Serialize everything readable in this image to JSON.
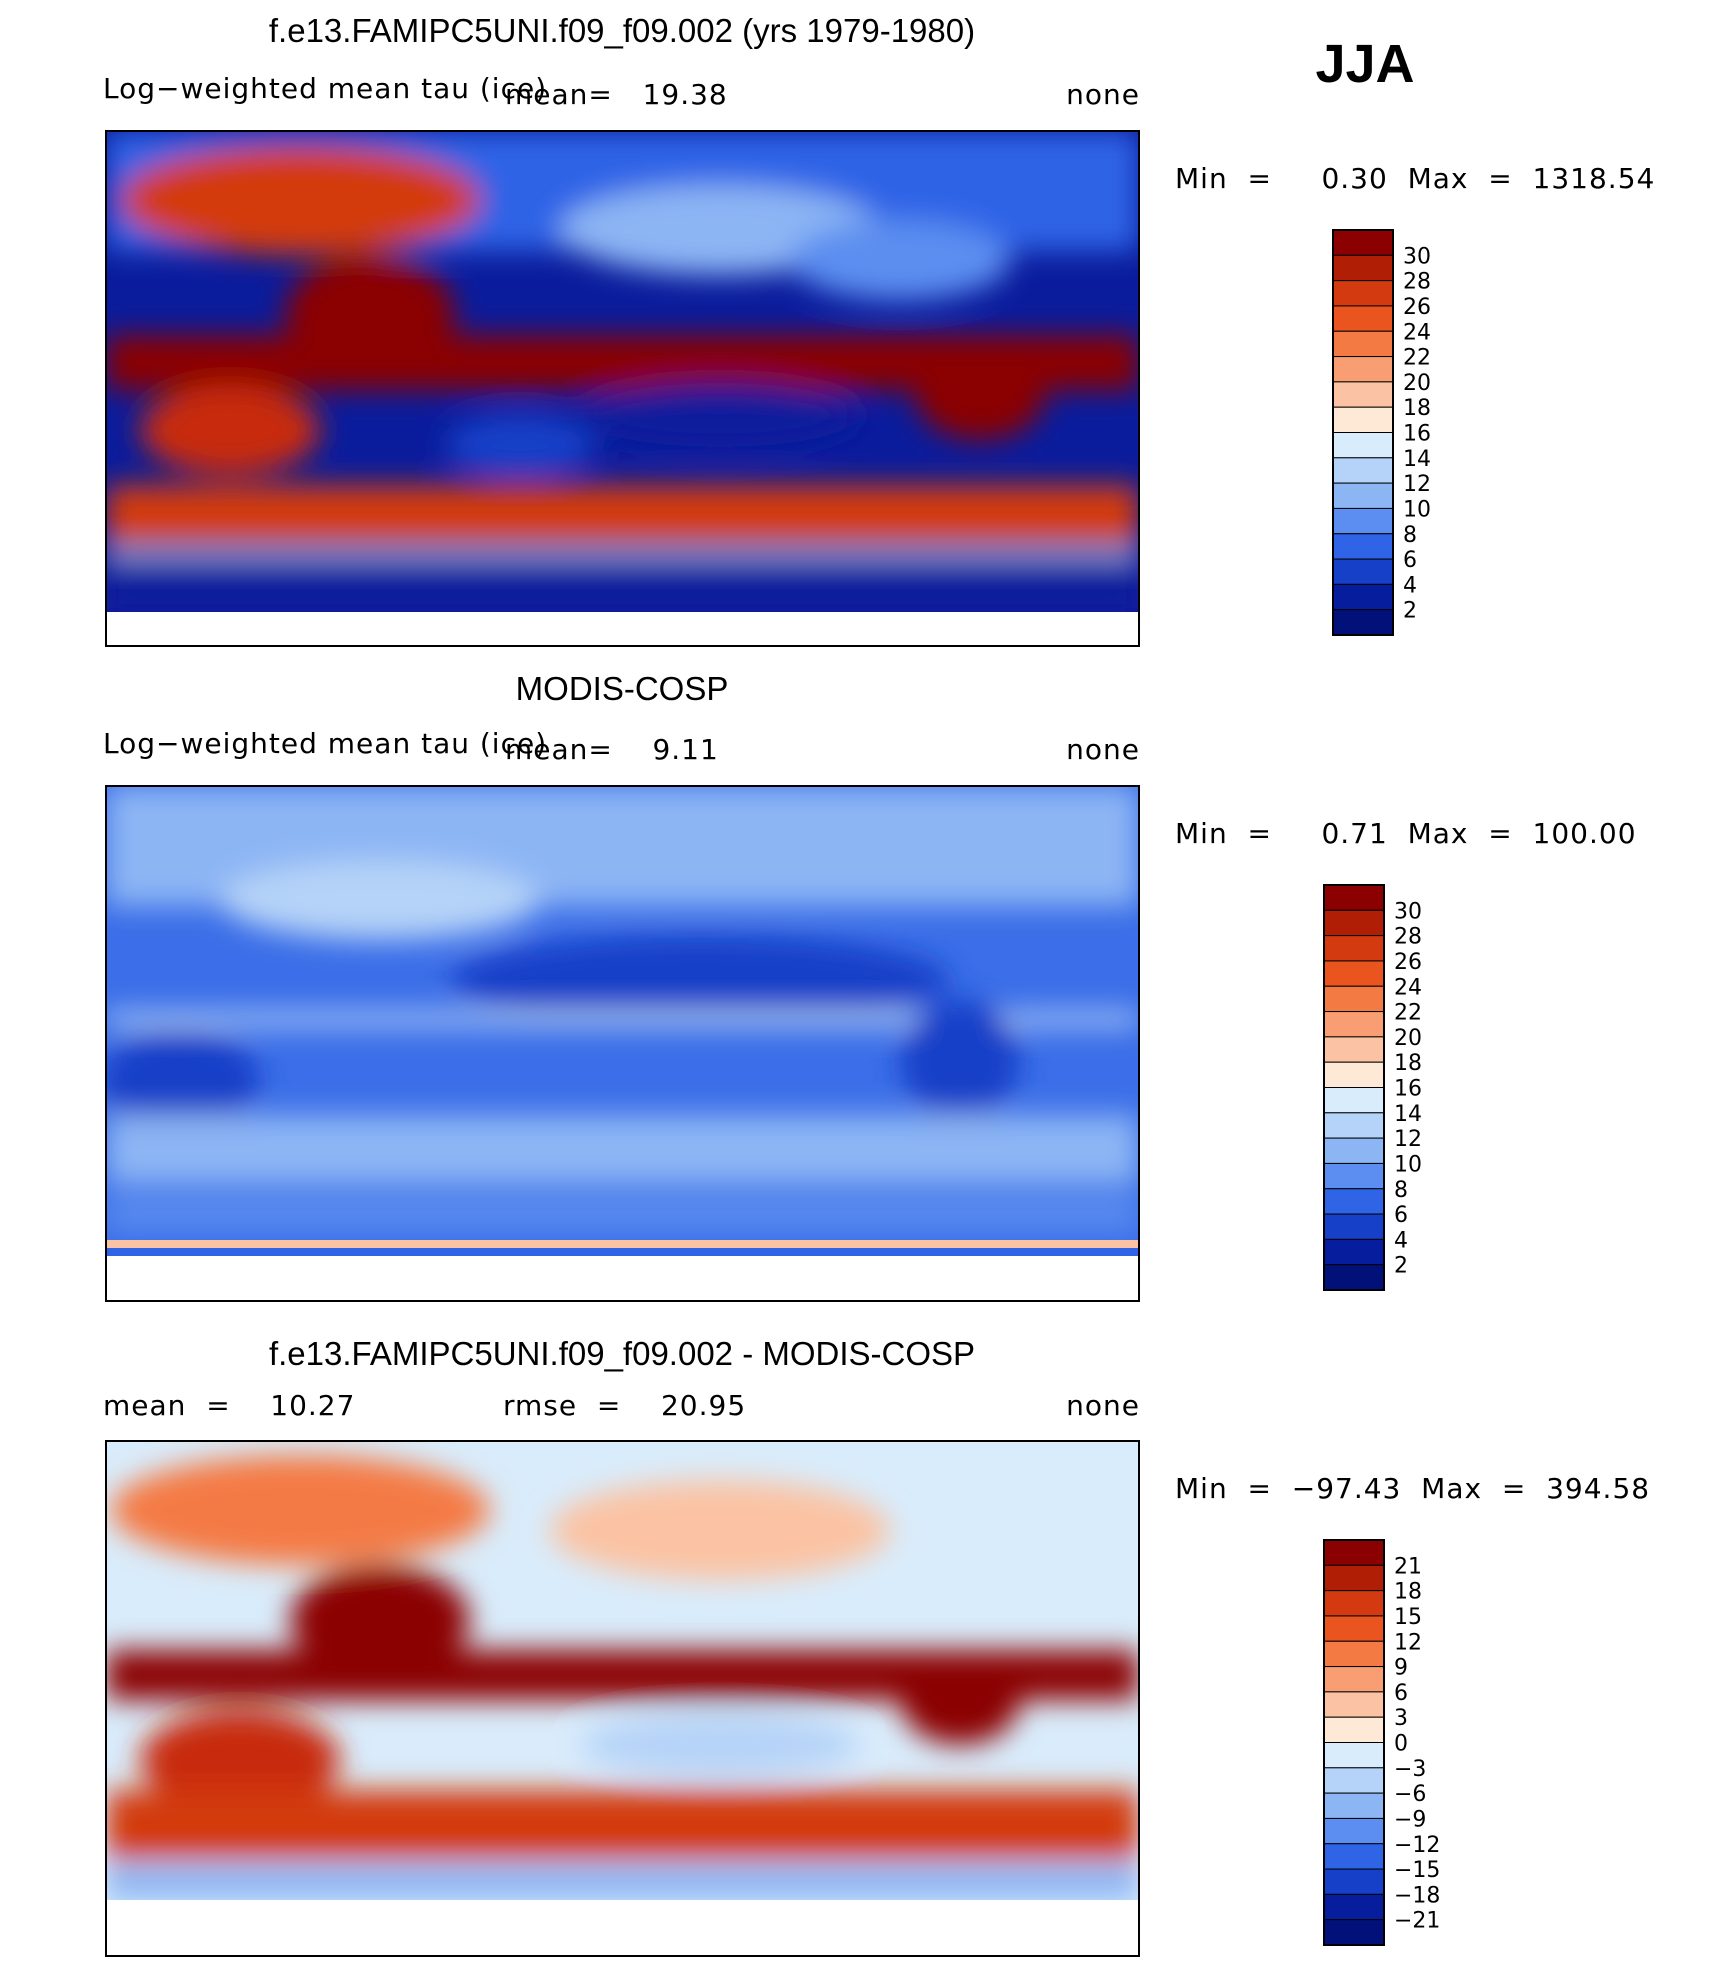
{
  "season": "JJA",
  "chart_data": [
    {
      "type": "heatmap",
      "title": "f.e13.FAMIPC5UNI.f09_f09.002 (yrs 1979-1980)",
      "left_label": "Log−weighted mean tau (ice)",
      "center_label": "mean=   19.38",
      "right_label": "none",
      "minmax": "Min  =     0.30  Max  =  1318.54",
      "colorbar": {
        "levels": [
          "30",
          "28",
          "26",
          "24",
          "22",
          "20",
          "18",
          "16",
          "14",
          "12",
          "10",
          "8",
          "6",
          "4",
          "2"
        ],
        "colors": [
          "#8b0000",
          "#b01e05",
          "#d33a10",
          "#e9541f",
          "#f47a44",
          "#f99d72",
          "#fbc3a3",
          "#fde9d6",
          "#d9ecfb",
          "#b5d3f8",
          "#8cb5f4",
          "#5b8ef0",
          "#2f64e6",
          "#1640c8",
          "#061e9e",
          "#02107a"
        ]
      },
      "bg_colors": {
        "deep": "#0a1c9c",
        "mid": "#3b6ee8",
        "light": "#9cc0f6",
        "warm": "#f2a07a",
        "hot": "#c82a0a",
        "dark": "#8b0000"
      }
    },
    {
      "type": "heatmap",
      "title": "MODIS-COSP",
      "left_label": "Log−weighted mean tau (ice)",
      "center_label": "mean=    9.11",
      "right_label": "none",
      "minmax": "Min  =     0.71  Max  =  100.00",
      "colorbar": {
        "levels": [
          "30",
          "28",
          "26",
          "24",
          "22",
          "20",
          "18",
          "16",
          "14",
          "12",
          "10",
          "8",
          "6",
          "4",
          "2"
        ],
        "colors": [
          "#8b0000",
          "#b01e05",
          "#d33a10",
          "#e9541f",
          "#f47a44",
          "#f99d72",
          "#fbc3a3",
          "#fde9d6",
          "#d9ecfb",
          "#b5d3f8",
          "#8cb5f4",
          "#5b8ef0",
          "#2f64e6",
          "#1640c8",
          "#061e9e",
          "#02107a"
        ]
      }
    },
    {
      "type": "heatmap",
      "title": "f.e13.FAMIPC5UNI.f09_f09.002 - MODIS-COSP",
      "left_label": "mean  =    10.27",
      "center_label": "rmse  =    20.95",
      "right_label": "none",
      "minmax": "Min  =  −97.43  Max  =  394.58",
      "colorbar": {
        "levels": [
          "21",
          "18",
          "15",
          "12",
          "9",
          "6",
          "3",
          "0",
          "−3",
          "−6",
          "−9",
          "−12",
          "−15",
          "−18",
          "−21"
        ],
        "colors": [
          "#8b0000",
          "#b01e05",
          "#d33a10",
          "#e9541f",
          "#f47a44",
          "#f99d72",
          "#fbc3a3",
          "#fde9d6",
          "#d9ecfb",
          "#b5d3f8",
          "#8cb5f4",
          "#5b8ef0",
          "#2f64e6",
          "#1640c8",
          "#061e9e",
          "#02107a"
        ]
      }
    }
  ]
}
